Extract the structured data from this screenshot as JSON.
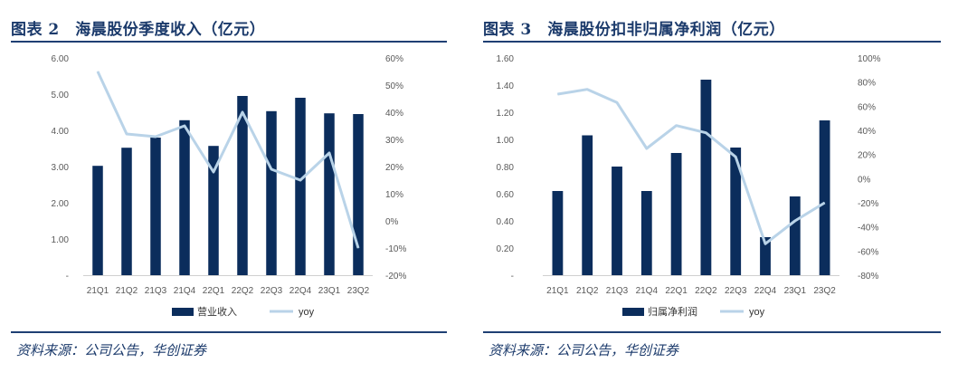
{
  "figures": [
    {
      "title": "图表 2　海晨股份季度收入（亿元）",
      "source": "资料来源：公司公告，华创证券",
      "legend": {
        "bar": "营业收入",
        "line": "yoy"
      }
    },
    {
      "title": "图表 3　海晨股份扣非归属净利润（亿元）",
      "source": "资料来源：公司公告，华创证券",
      "legend": {
        "bar": "归属净利润",
        "line": "yoy"
      }
    }
  ],
  "colors": {
    "bar": "#0b2d5c",
    "line": "#b9d3e8",
    "title": "#1b3a6b",
    "axis_text": "#595959"
  },
  "chart_data": [
    {
      "type": "bar",
      "title": "海晨股份季度收入（亿元）",
      "categories": [
        "21Q1",
        "21Q2",
        "21Q3",
        "21Q4",
        "22Q1",
        "22Q2",
        "22Q3",
        "22Q4",
        "23Q1",
        "23Q2"
      ],
      "series": [
        {
          "name": "营业收入",
          "type": "bar",
          "axis": "left",
          "values": [
            3.02,
            3.52,
            3.8,
            4.28,
            3.57,
            4.95,
            4.53,
            4.9,
            4.47,
            4.45
          ]
        },
        {
          "name": "yoy",
          "type": "line",
          "axis": "right",
          "values": [
            55,
            32,
            31,
            35,
            18,
            40,
            19,
            15,
            25,
            -10
          ]
        }
      ],
      "left_axis": {
        "min": 0,
        "max": 6,
        "step": 1,
        "tick_labels": [
          "-",
          "1.00",
          "2.00",
          "3.00",
          "4.00",
          "5.00",
          "6.00"
        ]
      },
      "right_axis": {
        "min": -20,
        "max": 60,
        "step": 10,
        "tick_labels": [
          "-20%",
          "-10%",
          "0%",
          "10%",
          "20%",
          "30%",
          "40%",
          "50%",
          "60%"
        ]
      },
      "legend_position": "bottom"
    },
    {
      "type": "bar",
      "title": "海晨股份扣非归属净利润（亿元）",
      "categories": [
        "21Q1",
        "21Q2",
        "21Q3",
        "21Q4",
        "22Q1",
        "22Q2",
        "22Q3",
        "22Q4",
        "23Q1",
        "23Q2"
      ],
      "series": [
        {
          "name": "归属净利润",
          "type": "bar",
          "axis": "left",
          "values": [
            0.62,
            1.03,
            0.8,
            0.62,
            0.9,
            1.44,
            0.94,
            0.28,
            0.58,
            1.14
          ]
        },
        {
          "name": "yoy",
          "type": "line",
          "axis": "right",
          "values": [
            70,
            74,
            63,
            25,
            44,
            38,
            18,
            -54,
            -35,
            -20
          ]
        }
      ],
      "left_axis": {
        "min": 0,
        "max": 1.6,
        "step": 0.2,
        "tick_labels": [
          "-",
          "0.20",
          "0.40",
          "0.60",
          "0.80",
          "1.00",
          "1.20",
          "1.40",
          "1.60"
        ]
      },
      "right_axis": {
        "min": -80,
        "max": 100,
        "step": 20,
        "tick_labels": [
          "-80%",
          "-60%",
          "-40%",
          "-20%",
          "0%",
          "20%",
          "40%",
          "60%",
          "80%",
          "100%"
        ]
      },
      "legend_position": "bottom"
    }
  ]
}
